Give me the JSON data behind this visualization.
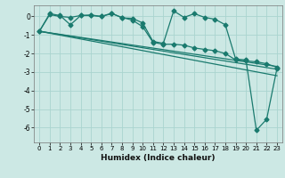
{
  "title": "",
  "xlabel": "Humidex (Indice chaleur)",
  "bg_color": "#cce8e4",
  "line_color": "#1a7a6e",
  "grid_color": "#aad4cf",
  "xlim": [
    -0.5,
    23.5
  ],
  "ylim": [
    -6.8,
    0.6
  ],
  "yticks": [
    0,
    -1,
    -2,
    -3,
    -4,
    -5,
    -6
  ],
  "xticks": [
    0,
    1,
    2,
    3,
    4,
    5,
    6,
    7,
    8,
    9,
    10,
    11,
    12,
    13,
    14,
    15,
    16,
    17,
    18,
    19,
    20,
    21,
    22,
    23
  ],
  "series": [
    {
      "x": [
        0,
        1,
        2,
        3,
        4,
        5,
        6,
        7,
        8,
        9,
        10,
        11,
        12,
        13,
        14,
        15,
        16,
        17,
        18,
        19,
        20,
        21,
        22,
        23
      ],
      "y": [
        -0.8,
        0.15,
        0.05,
        -0.45,
        0.05,
        0.05,
        0.0,
        0.18,
        -0.08,
        -0.1,
        -0.35,
        -1.35,
        -1.45,
        0.3,
        -0.05,
        0.15,
        -0.05,
        -0.15,
        -0.45,
        -2.3,
        -2.35,
        -6.15,
        -5.55,
        -2.8
      ],
      "marker": "D",
      "markersize": 2.5,
      "lw": 0.9
    },
    {
      "x": [
        0,
        23
      ],
      "y": [
        -0.8,
        -2.7
      ],
      "marker": null,
      "markersize": 0,
      "lw": 0.9
    },
    {
      "x": [
        0,
        23
      ],
      "y": [
        -0.8,
        -2.85
      ],
      "marker": null,
      "markersize": 0,
      "lw": 0.9
    },
    {
      "x": [
        0,
        23
      ],
      "y": [
        -0.8,
        -3.2
      ],
      "marker": null,
      "markersize": 0,
      "lw": 0.9
    },
    {
      "x": [
        0,
        1,
        2,
        3,
        4,
        5,
        6,
        7,
        8,
        9,
        10,
        11,
        12,
        13,
        14,
        15,
        16,
        17,
        18,
        19,
        20,
        21,
        22,
        23
      ],
      "y": [
        -0.8,
        0.1,
        0.0,
        -0.05,
        0.05,
        0.08,
        0.0,
        0.15,
        -0.05,
        -0.2,
        -0.55,
        -1.4,
        -1.5,
        -1.5,
        -1.55,
        -1.7,
        -1.78,
        -1.85,
        -2.0,
        -2.35,
        -2.4,
        -2.45,
        -2.55,
        -2.75
      ],
      "marker": "D",
      "markersize": 2.5,
      "lw": 0.9
    }
  ]
}
